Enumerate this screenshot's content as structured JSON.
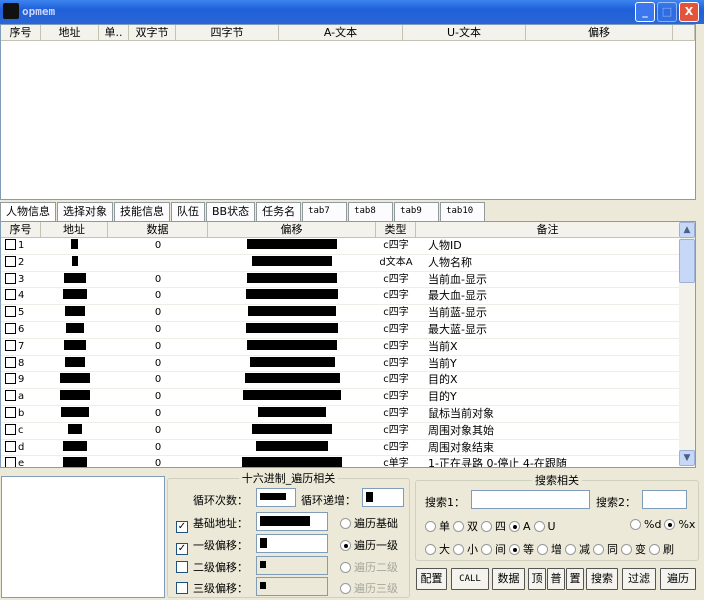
{
  "window": {
    "title": "opmem",
    "minimize": "_",
    "maximize": "□",
    "close": "X"
  },
  "top_table": {
    "columns": [
      "序号",
      "地址",
      "单..",
      "双字节",
      "四字节",
      "A-文本",
      "U-文本",
      "偏移",
      ""
    ]
  },
  "tabs": [
    "人物信息",
    "选择对象",
    "技能信息",
    "队伍",
    "BB状态",
    "任务名",
    "tab7",
    "tab8",
    "tab9",
    "tab10"
  ],
  "list": {
    "columns": [
      "序号",
      "地址",
      "数据",
      "偏移",
      "类型",
      "备注"
    ],
    "rows": [
      {
        "id": "1",
        "data": "0",
        "type": "c四字",
        "note": "人物ID"
      },
      {
        "id": "2",
        "data": "",
        "type": "d文本A",
        "note": "人物名称"
      },
      {
        "id": "3",
        "data": "0",
        "type": "c四字",
        "note": "当前血-显示"
      },
      {
        "id": "4",
        "data": "0",
        "type": "c四字",
        "note": "最大血-显示"
      },
      {
        "id": "5",
        "data": "0",
        "type": "c四字",
        "note": "当前蓝-显示"
      },
      {
        "id": "6",
        "data": "0",
        "type": "c四字",
        "note": "最大蓝-显示"
      },
      {
        "id": "7",
        "data": "0",
        "type": "c四字",
        "note": "当前X"
      },
      {
        "id": "8",
        "data": "0",
        "type": "c四字",
        "note": "当前Y"
      },
      {
        "id": "9",
        "data": "0",
        "type": "c四字",
        "note": "目的X"
      },
      {
        "id": "a",
        "data": "0",
        "type": "c四字",
        "note": "目的Y"
      },
      {
        "id": "b",
        "data": "0",
        "type": "c四字",
        "note": "鼠标当前对象"
      },
      {
        "id": "c",
        "data": "0",
        "type": "c四字",
        "note": "周围对象其始"
      },
      {
        "id": "d",
        "data": "0",
        "type": "c四字",
        "note": "周围对象结束"
      },
      {
        "id": "e",
        "data": "0",
        "type": "c单字",
        "note": "1-正在寻路 0-停止 4-在跟随"
      }
    ]
  },
  "hex_group": {
    "title": "十六进制_遍历相关",
    "loop_count": "循环次数：",
    "loop_inc": "循环递增：",
    "base": "基础地址：",
    "lvl1": "一级偏移：",
    "lvl2": "二级偏移：",
    "lvl3": "三级偏移：",
    "base_checked": true,
    "lvl1_checked": true,
    "lvl2_checked": false,
    "lvl3_checked": false,
    "r_base": "遍历基础",
    "r_lvl1": "遍历一级",
    "r_lvl2": "遍历二级",
    "r_lvl3": "遍历三级",
    "selected": "遍历一级"
  },
  "search_group": {
    "title": "搜索相关",
    "search1": "搜索1：",
    "search2": "搜索2：",
    "row1": [
      "单",
      "双",
      "四",
      "A",
      "U"
    ],
    "row1_selected": "A",
    "fmt": [
      "%d",
      "%x"
    ],
    "fmt_selected": "%x",
    "row2": [
      "大",
      "小",
      "间",
      "等",
      "增",
      "减",
      "同",
      "变",
      "刷"
    ],
    "row2_selected": "等"
  },
  "buttons": [
    "配置",
    "CALL",
    "数据",
    "顶",
    "普",
    "置",
    "搜索",
    "过滤",
    "遍历"
  ]
}
